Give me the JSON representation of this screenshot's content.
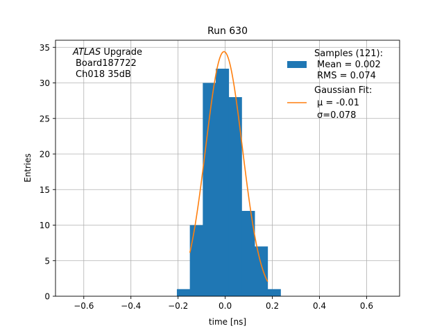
{
  "chart_data": {
    "type": "bar",
    "title": "Run 630",
    "xlabel": "time [ns]",
    "ylabel": "Entries",
    "xlim": [
      -0.72,
      0.74
    ],
    "ylim": [
      0,
      36
    ],
    "grid": true,
    "xticks": [
      -0.6,
      -0.4,
      -0.2,
      0.0,
      0.2,
      0.4,
      0.6
    ],
    "xtick_labels": [
      "−0.6",
      "−0.4",
      "−0.2",
      "0.0",
      "0.2",
      "0.4",
      "0.6"
    ],
    "yticks": [
      0,
      5,
      10,
      15,
      20,
      25,
      30,
      35
    ],
    "ytick_labels": [
      "0",
      "5",
      "10",
      "15",
      "20",
      "25",
      "30",
      "35"
    ],
    "annotation": {
      "line1_italic": "ATLAS",
      "line1_rest": " Upgrade",
      "line2": "Board187722",
      "line3": "Ch018 35dB"
    },
    "histogram": {
      "name": "Samples (121):",
      "color": "#1f77b4",
      "bins": [
        {
          "x0": -0.205,
          "x1": -0.15,
          "count": 1
        },
        {
          "x0": -0.15,
          "x1": -0.095,
          "count": 10
        },
        {
          "x0": -0.095,
          "x1": -0.04,
          "count": 30
        },
        {
          "x0": -0.04,
          "x1": 0.015,
          "count": 32
        },
        {
          "x0": 0.015,
          "x1": 0.07,
          "count": 28
        },
        {
          "x0": 0.07,
          "x1": 0.125,
          "count": 12
        },
        {
          "x0": 0.125,
          "x1": 0.18,
          "count": 7
        },
        {
          "x0": 0.18,
          "x1": 0.235,
          "count": 1
        }
      ]
    },
    "fit": {
      "name": "Gaussian Fit:",
      "color": "#ff7f0e",
      "amplitude": 34.4,
      "mu": -0.005,
      "sigma": 0.078,
      "x_range": [
        -0.15,
        0.18
      ]
    },
    "legend": {
      "placement": "top-right",
      "samples_title": "Samples (121):",
      "samples_mean": "Mean = 0.002",
      "samples_rms": "RMS = 0.074",
      "fit_title": "Gaussian Fit:",
      "fit_mu": "μ = -0.01",
      "fit_sigma": "σ=0.078"
    }
  }
}
